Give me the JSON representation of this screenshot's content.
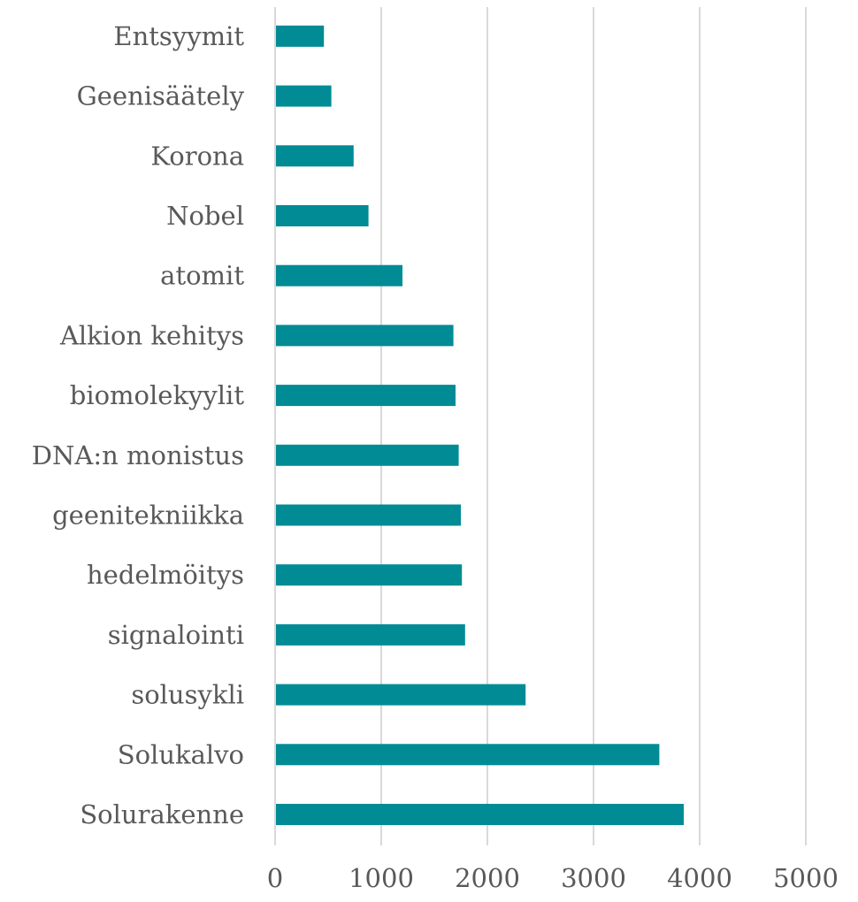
{
  "chart_data": {
    "type": "bar",
    "orientation": "horizontal",
    "categories": [
      "Solurakenne",
      "Solukalvo",
      "solusykli",
      "signalointi",
      "hedelmöitys",
      "geenitekniikka",
      "DNA:n monistus",
      "biomolekyylit",
      "Alkion kehitys",
      "atomit",
      "Nobel",
      "Korona",
      "Geenisäätely",
      "Entsyymit"
    ],
    "values": [
      3850,
      3620,
      2360,
      1790,
      1760,
      1750,
      1730,
      1700,
      1680,
      1200,
      880,
      740,
      530,
      460
    ],
    "xlim": [
      0,
      5000
    ],
    "xticks": [
      "0",
      "1000",
      "2000",
      "3000",
      "4000",
      "5000"
    ],
    "bar_color": "#008b95",
    "grid": true,
    "title": "",
    "xlabel": "",
    "ylabel": ""
  }
}
